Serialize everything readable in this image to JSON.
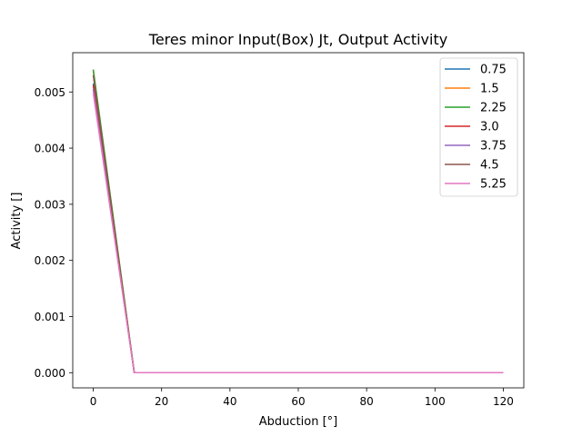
{
  "chart_data": {
    "type": "line",
    "title": "Teres minor Input(Box) Jt, Output Activity",
    "xlabel": "Abduction [°]",
    "ylabel": "Activity []",
    "xlim": [
      -6,
      126
    ],
    "ylim": [
      -0.00027,
      0.0057
    ],
    "xticks": [
      0,
      20,
      40,
      60,
      80,
      100,
      120
    ],
    "xtick_labels": [
      "0",
      "20",
      "40",
      "60",
      "80",
      "100",
      "120"
    ],
    "yticks": [
      0,
      0.001,
      0.002,
      0.003,
      0.004,
      0.005
    ],
    "ytick_labels": [
      "0.000",
      "0.001",
      "0.002",
      "0.003",
      "0.004",
      "0.005"
    ],
    "grid": false,
    "legend_position": "top-right",
    "x": [
      0,
      12,
      24,
      36,
      48,
      60,
      72,
      84,
      96,
      108,
      120
    ],
    "series": [
      {
        "name": "0.75",
        "color": "#1f77b4",
        "values": [
          0.00515,
          0,
          0,
          0,
          0,
          0,
          0,
          0,
          0,
          0,
          0
        ]
      },
      {
        "name": "1.5",
        "color": "#ff7f0e",
        "values": [
          0.00538,
          0,
          0,
          0,
          0,
          0,
          0,
          0,
          0,
          0,
          0
        ]
      },
      {
        "name": "2.25",
        "color": "#2ca02c",
        "values": [
          0.0054,
          0,
          0,
          0,
          0,
          0,
          0,
          0,
          0,
          0,
          0
        ]
      },
      {
        "name": "3.0",
        "color": "#d62728",
        "values": [
          0.00512,
          0,
          0,
          0,
          0,
          0,
          0,
          0,
          0,
          0,
          0
        ]
      },
      {
        "name": "3.75",
        "color": "#9467bd",
        "values": [
          0.00505,
          0,
          0,
          0,
          0,
          0,
          0,
          0,
          0,
          0,
          0
        ]
      },
      {
        "name": "4.5",
        "color": "#8c564b",
        "values": [
          0.0053,
          0,
          0,
          0,
          0,
          0,
          0,
          0,
          0,
          0,
          0
        ]
      },
      {
        "name": "5.25",
        "color": "#e377c2",
        "values": [
          0.00498,
          0,
          0,
          0,
          0,
          0,
          0,
          0,
          0,
          0,
          0
        ]
      }
    ]
  }
}
